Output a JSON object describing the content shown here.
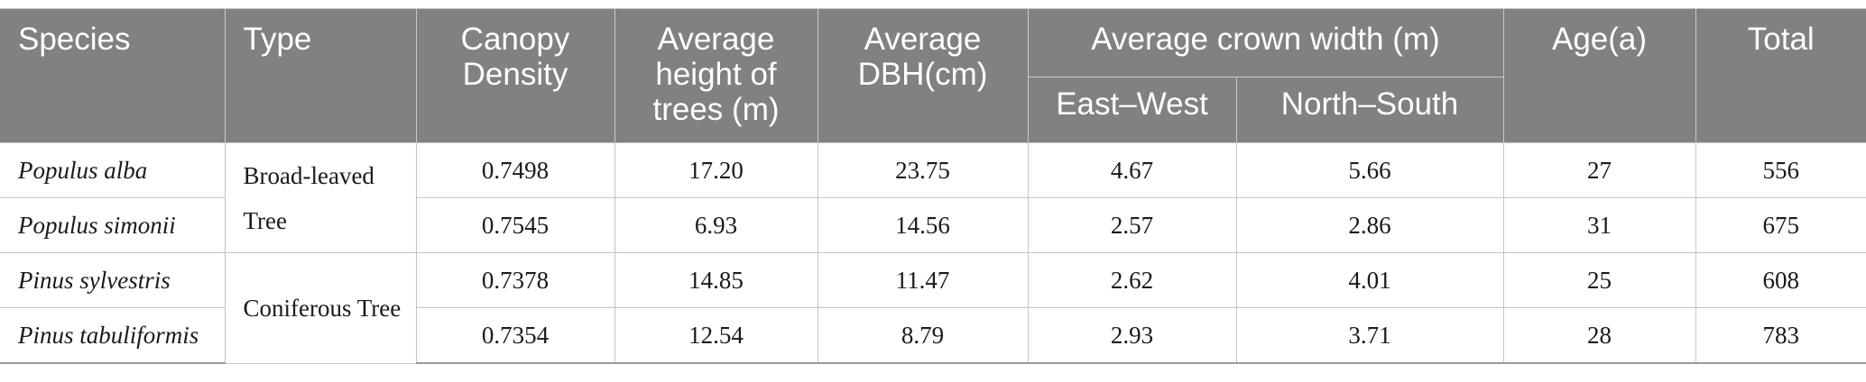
{
  "table": {
    "headers": {
      "species": "Species",
      "type": "Type",
      "canopy": "Canopy Density",
      "height": "Average height of trees (m)",
      "dbh": "Average DBH(cm)",
      "crown": "Average crown width (m)",
      "crown_ew": "East–West",
      "crown_ns": "North–South",
      "age": "Age(a)",
      "total": "Total"
    },
    "groups": [
      {
        "type": "Broad-leaved Tree",
        "rows": [
          {
            "species": "Populus alba",
            "canopy": "0.7498",
            "height": "17.20",
            "dbh": "23.75",
            "ew": "4.67",
            "ns": "5.66",
            "age": "27",
            "total": "556"
          },
          {
            "species": "Populus simonii",
            "canopy": "0.7545",
            "height": "6.93",
            "dbh": "14.56",
            "ew": "2.57",
            "ns": "2.86",
            "age": "31",
            "total": "675"
          }
        ]
      },
      {
        "type": "Coniferous Tree",
        "rows": [
          {
            "species": "Pinus sylvestris",
            "canopy": "0.7378",
            "height": "14.85",
            "dbh": "11.47",
            "ew": "2.62",
            "ns": "4.01",
            "age": "25",
            "total": "608"
          },
          {
            "species": "Pinus tabuliformis",
            "canopy": "0.7354",
            "height": "12.54",
            "dbh": "8.79",
            "ew": "2.93",
            "ns": "3.71",
            "age": "28",
            "total": "783"
          }
        ]
      }
    ]
  }
}
